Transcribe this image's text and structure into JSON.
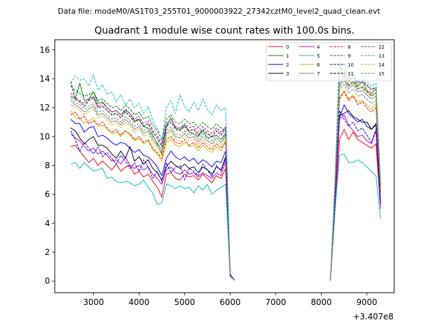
{
  "header": {
    "data_file": "Data file: modeM0/AS1T03_255T01_9000003922_27342cztM0_level2_quad_clean.evt"
  },
  "chart_data": {
    "type": "line",
    "title": "Quadrant 1 module wise count rates with 100.0s bins.",
    "xlabel": "",
    "ylabel": "",
    "x_offset_label": "+3.407e8",
    "xlim": [
      2150,
      9600
    ],
    "ylim": [
      -0.8,
      16.7
    ],
    "xticks": [
      3000,
      4000,
      5000,
      6000,
      7000,
      8000,
      9000
    ],
    "yticks": [
      0,
      2,
      4,
      6,
      8,
      10,
      12,
      14,
      16
    ],
    "grid": false,
    "legend_position": "top-right",
    "colors": {
      "axes": "#000000",
      "background": "#ffffff",
      "series": [
        "#ff0000",
        "#008000",
        "#0000ff",
        "#000000",
        "#c000c0",
        "#00c0c0",
        "#c0c000",
        "#808080",
        "#ff0000",
        "#008000",
        "#0000ff",
        "#000000",
        "#c000c0",
        "#00c0c0",
        "#c0c000",
        "#808080"
      ]
    },
    "segments": [
      {
        "x": [
          2500,
          2600,
          2700,
          2800,
          2900,
          3000,
          3100,
          3200,
          3300,
          3400,
          3500,
          3600,
          3700,
          3800,
          3900,
          4000,
          4100,
          4200,
          4300,
          4400,
          4500,
          4600,
          4700,
          4800,
          4900,
          5000,
          5100,
          5200,
          5300,
          5400,
          5500,
          5600,
          5700,
          5800,
          5900,
          6000,
          6100
        ]
      },
      {
        "x": [
          8200,
          8300,
          8400,
          8500,
          8600,
          8700,
          8800,
          8900,
          9000,
          9100,
          9200,
          9300
        ]
      }
    ],
    "series": [
      {
        "name": "0",
        "style": "solid",
        "values": [
          [
            9.3,
            9.4,
            9.0,
            8.6,
            8.2,
            8.5,
            8.0,
            8.3,
            8.0,
            7.7,
            8.1,
            7.6,
            7.9,
            8.0,
            7.4,
            7.6,
            7.2,
            7.4,
            6.9,
            6.5,
            5.8,
            7.4,
            7.5,
            7.1,
            7.0,
            7.4,
            7.2,
            7.3,
            7.0,
            7.4,
            7.1,
            6.8,
            7.3,
            7.1,
            7.8,
            0.4,
            0.05
          ],
          [
            0.05,
            4.8,
            9.8,
            10.5,
            9.8,
            10.3,
            9.8,
            9.6,
            9.4,
            9.2,
            9.5,
            5.0
          ]
        ]
      },
      {
        "name": "1",
        "style": "solid",
        "values": [
          [
            12.8,
            12.6,
            13.7,
            12.5,
            12.6,
            13.1,
            12.3,
            12.4,
            12.0,
            11.7,
            11.8,
            11.5,
            11.8,
            11.6,
            11.1,
            11.2,
            10.7,
            10.6,
            10.1,
            9.5,
            8.8,
            10.7,
            11.3,
            10.6,
            10.5,
            10.8,
            10.3,
            10.2,
            10.0,
            10.4,
            9.9,
            10.0,
            10.1,
            9.8,
            10.2,
            0.5,
            0.05
          ],
          [
            0.05,
            6.5,
            13.6,
            14.3,
            13.8,
            14.1,
            13.5,
            13.8,
            13.2,
            13.0,
            13.3,
            6.5
          ]
        ]
      },
      {
        "name": "2",
        "style": "solid",
        "values": [
          [
            11.2,
            10.9,
            10.9,
            10.3,
            10.6,
            10.7,
            10.0,
            10.1,
            9.9,
            9.6,
            9.4,
            9.6,
            9.5,
            9.2,
            8.9,
            9.1,
            8.7,
            8.6,
            8.3,
            7.9,
            7.3,
            8.5,
            9.0,
            8.6,
            8.4,
            8.6,
            8.3,
            8.5,
            8.1,
            8.4,
            8.2,
            7.9,
            8.3,
            8.2,
            9.0,
            0.4,
            0.05
          ],
          [
            0.05,
            5.5,
            11.3,
            12.2,
            11.6,
            11.3,
            11.0,
            11.2,
            10.7,
            10.5,
            10.9,
            5.4
          ]
        ]
      },
      {
        "name": "3",
        "style": "solid",
        "values": [
          [
            10.6,
            10.4,
            9.9,
            9.5,
            9.8,
            10.0,
            9.4,
            9.4,
            9.2,
            8.8,
            8.5,
            9.0,
            8.5,
            9.3,
            8.3,
            8.6,
            8.1,
            8.4,
            7.8,
            7.5,
            7.0,
            7.9,
            8.3,
            8.0,
            7.8,
            8.1,
            7.8,
            7.9,
            7.5,
            7.9,
            7.7,
            7.4,
            7.9,
            7.7,
            8.6,
            0.4,
            0.05
          ],
          [
            0.05,
            5.8,
            11.5,
            11.6,
            11.8,
            11.4,
            11.2,
            11.0,
            11.0,
            10.5,
            10.8,
            5.6
          ]
        ]
      },
      {
        "name": "4",
        "style": "solid",
        "values": [
          [
            10.2,
            9.9,
            9.7,
            9.3,
            9.0,
            9.2,
            8.8,
            9.0,
            8.7,
            8.3,
            8.4,
            8.1,
            8.6,
            8.0,
            7.8,
            8.0,
            7.7,
            7.9,
            7.4,
            7.1,
            6.7,
            7.7,
            7.9,
            7.5,
            7.4,
            7.7,
            7.4,
            7.5,
            7.2,
            7.5,
            7.3,
            7.1,
            7.5,
            7.3,
            8.3,
            0.4,
            0.05
          ],
          [
            0.05,
            5.2,
            11.2,
            11.5,
            10.8,
            10.4,
            10.0,
            10.1,
            9.7,
            9.5,
            10.4,
            5.3
          ]
        ]
      },
      {
        "name": "5",
        "style": "solid",
        "values": [
          [
            8.1,
            8.2,
            7.8,
            8.2,
            7.9,
            7.6,
            7.7,
            7.8,
            7.1,
            7.2,
            6.9,
            6.8,
            6.9,
            6.8,
            6.6,
            6.7,
            7.0,
            6.5,
            6.1,
            5.3,
            5.4,
            6.7,
            6.6,
            6.4,
            6.6,
            6.4,
            6.5,
            6.1,
            6.6,
            6.3,
            6.7,
            6.0,
            6.3,
            6.5,
            6.7,
            0.3,
            0.05
          ],
          [
            0.05,
            4.8,
            8.7,
            8.8,
            8.2,
            8.2,
            8.4,
            8.2,
            7.9,
            7.6,
            7.3,
            4.3
          ]
        ]
      },
      {
        "name": "6",
        "style": "solid",
        "values": [
          [
            11.8,
            11.3,
            11.2,
            10.9,
            11.1,
            11.3,
            10.7,
            10.8,
            10.5,
            10.2,
            10.3,
            10.0,
            10.4,
            10.1,
            9.7,
            9.9,
            9.5,
            9.7,
            9.1,
            8.8,
            8.3,
            9.6,
            9.8,
            9.4,
            9.3,
            9.6,
            9.3,
            9.4,
            9.0,
            9.4,
            9.1,
            8.9,
            9.3,
            9.0,
            9.8,
            0.4,
            0.05
          ],
          [
            0.05,
            6.0,
            12.7,
            13.2,
            12.6,
            12.9,
            12.4,
            12.5,
            12.2,
            11.9,
            12.3,
            6.2
          ]
        ]
      },
      {
        "name": "7",
        "style": "solid",
        "values": [
          [
            12.5,
            12.2,
            12.0,
            11.7,
            11.9,
            12.1,
            11.5,
            11.6,
            11.3,
            11.0,
            11.1,
            10.8,
            11.2,
            10.9,
            10.5,
            10.7,
            10.2,
            10.4,
            9.8,
            9.4,
            8.9,
            10.2,
            10.5,
            10.0,
            9.9,
            10.2,
            9.9,
            10.0,
            9.6,
            10.0,
            9.7,
            9.5,
            9.9,
            9.6,
            10.1,
            0.5,
            0.05
          ],
          [
            0.05,
            6.2,
            13.4,
            13.9,
            13.3,
            13.6,
            13.1,
            13.2,
            12.9,
            12.6,
            12.8,
            6.4
          ]
        ]
      },
      {
        "name": "8",
        "style": "dashed",
        "values": [
          [
            11.5,
            11.7,
            11.2,
            11.4,
            10.9,
            11.1,
            10.8,
            11.0,
            10.6,
            10.3,
            10.5,
            10.1,
            10.4,
            10.2,
            9.8,
            10.0,
            9.6,
            9.8,
            9.2,
            8.9,
            8.5,
            9.8,
            10.0,
            9.6,
            9.5,
            9.8,
            9.4,
            9.6,
            9.2,
            9.6,
            9.3,
            9.1,
            9.5,
            9.2,
            9.6,
            0.4,
            0.05
          ],
          [
            0.05,
            6.0,
            12.6,
            13.1,
            12.5,
            12.8,
            12.2,
            12.4,
            12.0,
            11.7,
            12.0,
            6.1
          ]
        ]
      },
      {
        "name": "9",
        "style": "dashed",
        "values": [
          [
            13.5,
            13.2,
            13.0,
            12.8,
            12.9,
            13.1,
            12.5,
            12.6,
            12.3,
            12.0,
            12.1,
            11.8,
            12.2,
            11.9,
            11.5,
            11.7,
            11.2,
            11.4,
            10.8,
            10.4,
            9.8,
            11.2,
            11.5,
            11.0,
            10.9,
            11.2,
            10.9,
            11.0,
            10.6,
            11.0,
            10.7,
            10.5,
            10.9,
            10.6,
            10.4,
            0.5,
            0.05
          ],
          [
            0.05,
            6.5,
            14.8,
            14.6,
            14.0,
            14.3,
            13.8,
            13.9,
            13.6,
            13.3,
            13.4,
            6.7
          ]
        ]
      },
      {
        "name": "10",
        "style": "dashed",
        "values": [
          [
            10.4,
            9.8,
            9.0,
            9.6,
            9.2,
            8.8,
            9.3,
            8.6,
            8.9,
            8.5,
            8.1,
            8.7,
            8.3,
            7.8,
            8.2,
            7.6,
            8.4,
            7.9,
            7.1,
            7.6,
            6.9,
            8.2,
            7.5,
            7.9,
            8.0,
            7.0,
            7.8,
            7.6,
            7.3,
            8.1,
            7.7,
            7.2,
            8.0,
            7.6,
            8.5,
            0.4,
            0.05
          ],
          [
            0.05,
            5.4,
            11.8,
            11.2,
            10.7,
            11.0,
            10.4,
            10.6,
            10.1,
            9.6,
            10.5,
            5.3
          ]
        ]
      },
      {
        "name": "11",
        "style": "dashed",
        "values": [
          [
            13.8,
            12.6,
            12.4,
            12.1,
            12.5,
            12.7,
            12.0,
            12.1,
            11.8,
            11.5,
            11.6,
            11.3,
            11.7,
            11.4,
            11.0,
            11.2,
            10.7,
            10.9,
            10.3,
            9.9,
            9.3,
            10.7,
            11.0,
            10.5,
            10.4,
            10.7,
            10.4,
            10.5,
            10.1,
            10.5,
            10.2,
            10.0,
            10.4,
            10.1,
            10.6,
            0.5,
            0.05
          ],
          [
            0.05,
            6.6,
            15.0,
            14.1,
            13.5,
            13.8,
            13.3,
            13.4,
            13.1,
            12.8,
            13.0,
            6.5
          ]
        ]
      },
      {
        "name": "12",
        "style": "dashed",
        "values": [
          [
            13.0,
            12.7,
            12.5,
            12.3,
            12.6,
            12.8,
            12.1,
            12.3,
            12.0,
            11.7,
            11.8,
            11.5,
            11.9,
            11.6,
            11.2,
            11.4,
            10.9,
            11.1,
            10.5,
            10.1,
            9.5,
            10.9,
            11.2,
            10.7,
            10.6,
            10.9,
            10.6,
            10.7,
            10.3,
            10.7,
            10.4,
            10.2,
            10.6,
            10.3,
            10.7,
            0.5,
            0.05
          ],
          [
            0.05,
            6.5,
            14.2,
            14.5,
            13.9,
            14.2,
            13.7,
            13.8,
            13.5,
            13.2,
            13.4,
            6.6
          ]
        ]
      },
      {
        "name": "13",
        "style": "dashed",
        "values": [
          [
            13.7,
            14.2,
            13.9,
            14.0,
            13.5,
            14.3,
            13.2,
            13.6,
            12.9,
            13.1,
            12.4,
            12.9,
            12.2,
            12.6,
            12.0,
            12.3,
            11.6,
            12.1,
            11.1,
            10.6,
            9.7,
            12.0,
            12.5,
            11.6,
            12.9,
            12.1,
            11.7,
            12.4,
            11.8,
            12.6,
            11.9,
            11.5,
            12.2,
            11.8,
            12.0,
            0.5,
            0.05
          ],
          [
            0.05,
            7.0,
            15.7,
            14.9,
            14.2,
            14.5,
            14.0,
            14.1,
            13.8,
            13.5,
            13.7,
            6.8
          ]
        ]
      },
      {
        "name": "14",
        "style": "dashed",
        "values": [
          [
            12.2,
            12.0,
            11.8,
            11.5,
            11.7,
            11.9,
            11.3,
            11.4,
            11.1,
            10.8,
            10.9,
            10.6,
            11.0,
            10.7,
            10.3,
            10.5,
            10.0,
            10.2,
            9.6,
            9.2,
            8.7,
            10.0,
            10.3,
            9.8,
            9.7,
            10.0,
            9.7,
            9.8,
            9.4,
            9.8,
            9.5,
            9.3,
            9.7,
            9.4,
            10.0,
            0.5,
            0.05
          ],
          [
            0.05,
            6.3,
            13.9,
            14.2,
            13.6,
            13.9,
            13.4,
            13.5,
            13.2,
            12.9,
            13.1,
            6.3
          ]
        ]
      },
      {
        "name": "15",
        "style": "dashed",
        "values": [
          [
            12.7,
            12.4,
            12.2,
            11.9,
            12.1,
            12.3,
            11.7,
            11.8,
            11.5,
            11.2,
            11.3,
            11.0,
            11.4,
            11.1,
            10.7,
            10.9,
            10.4,
            10.6,
            10.0,
            9.6,
            9.1,
            10.4,
            10.7,
            10.2,
            10.1,
            10.4,
            10.1,
            10.2,
            9.8,
            10.2,
            9.9,
            9.7,
            10.1,
            9.8,
            10.3,
            0.5,
            0.05
          ],
          [
            0.05,
            6.4,
            13.2,
            13.6,
            13.0,
            13.3,
            12.8,
            12.9,
            12.6,
            12.3,
            12.5,
            6.2
          ]
        ]
      }
    ]
  }
}
